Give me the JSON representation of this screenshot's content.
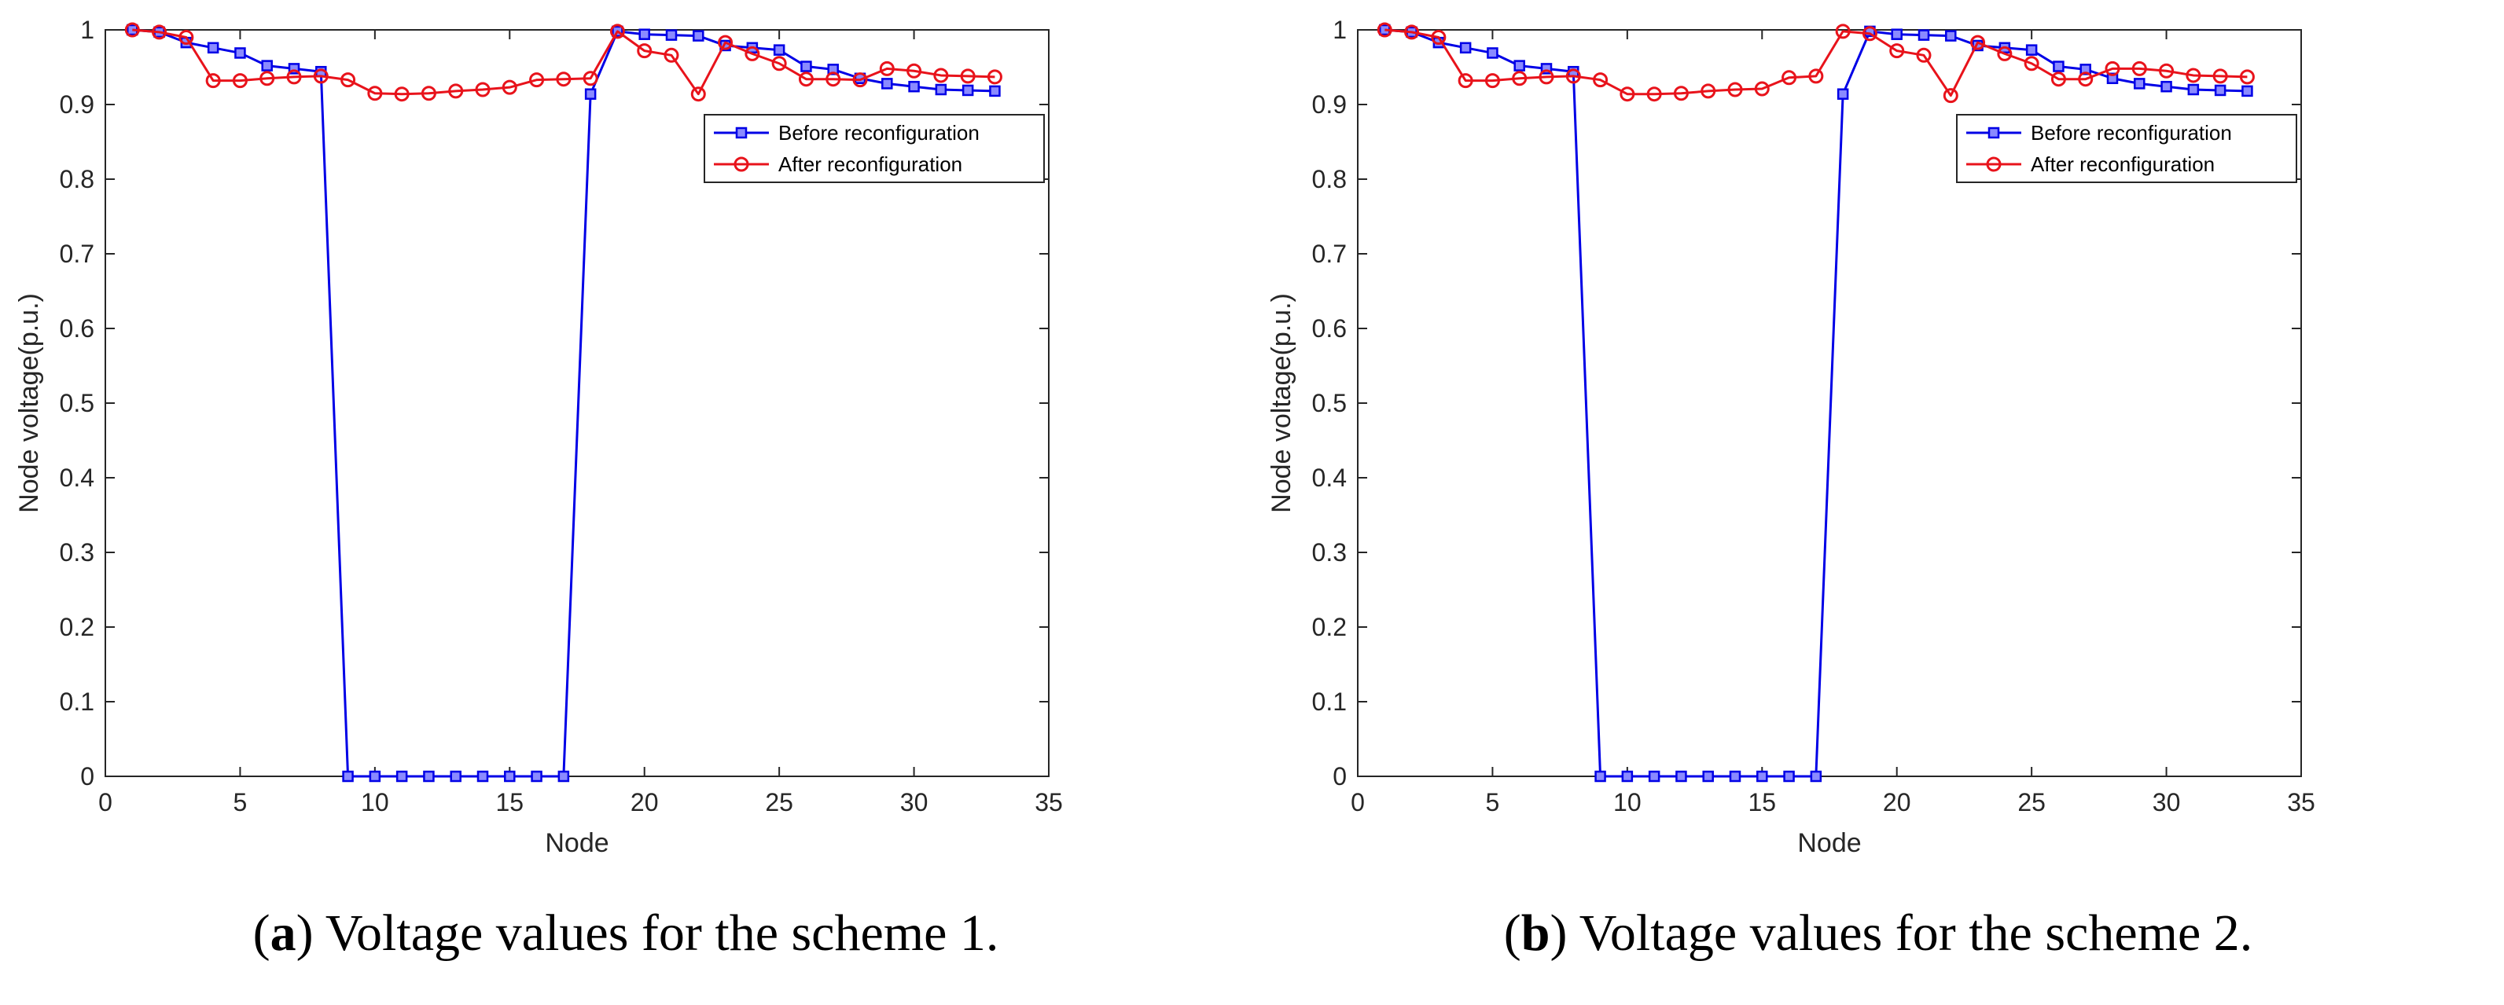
{
  "colors": {
    "before": "#0000e6",
    "before_marker_fill": "#8a8aff",
    "after": "#e8131b",
    "axis": "#262626"
  },
  "chart_data": [
    {
      "type": "line",
      "title": "",
      "xlabel": "Node",
      "ylabel": "Node voltage(p.u.)",
      "xlim": [
        0,
        35
      ],
      "ylim": [
        0,
        1
      ],
      "x_ticks": [
        "0",
        "5",
        "10",
        "15",
        "20",
        "25",
        "30",
        "35"
      ],
      "y_ticks": [
        "0",
        "0.1",
        "0.2",
        "0.3",
        "0.4",
        "0.5",
        "0.6",
        "0.7",
        "0.8",
        "0.9",
        "1"
      ],
      "legend_position": "top-right",
      "x": [
        1,
        2,
        3,
        4,
        5,
        6,
        7,
        8,
        9,
        10,
        11,
        12,
        13,
        14,
        15,
        16,
        17,
        18,
        19,
        20,
        21,
        22,
        23,
        24,
        25,
        26,
        27,
        28,
        29,
        30,
        31,
        32,
        33
      ],
      "series": [
        {
          "name": "Before reconfiguration",
          "marker": "square",
          "values": [
            1.0,
            0.997,
            0.983,
            0.976,
            0.969,
            0.952,
            0.948,
            0.944,
            0,
            0,
            0,
            0,
            0,
            0,
            0,
            0,
            0,
            0.914,
            0.998,
            0.994,
            0.993,
            0.992,
            0.979,
            0.976,
            0.973,
            0.951,
            0.947,
            0.935,
            0.928,
            0.924,
            0.92,
            0.919,
            0.918
          ]
        },
        {
          "name": "After reconfiguration",
          "marker": "circle",
          "values": [
            1.0,
            0.997,
            0.99,
            0.932,
            0.932,
            0.935,
            0.937,
            0.938,
            0.933,
            0.915,
            0.914,
            0.915,
            0.918,
            0.92,
            0.923,
            0.933,
            0.934,
            0.935,
            0.998,
            0.972,
            0.966,
            0.914,
            0.983,
            0.968,
            0.955,
            0.934,
            0.934,
            0.933,
            0.948,
            0.945,
            0.939,
            0.938,
            0.937
          ]
        }
      ],
      "caption_label": "a",
      "caption_text": "Voltage values for the scheme 1."
    },
    {
      "type": "line",
      "title": "",
      "xlabel": "Node",
      "ylabel": "Node voltage(p.u.)",
      "xlim": [
        0,
        35
      ],
      "ylim": [
        0,
        1
      ],
      "x_ticks": [
        "0",
        "5",
        "10",
        "15",
        "20",
        "25",
        "30",
        "35"
      ],
      "y_ticks": [
        "0",
        "0.1",
        "0.2",
        "0.3",
        "0.4",
        "0.5",
        "0.6",
        "0.7",
        "0.8",
        "0.9",
        "1"
      ],
      "legend_position": "top-right",
      "x": [
        1,
        2,
        3,
        4,
        5,
        6,
        7,
        8,
        9,
        10,
        11,
        12,
        13,
        14,
        15,
        16,
        17,
        18,
        19,
        20,
        21,
        22,
        23,
        24,
        25,
        26,
        27,
        28,
        29,
        30,
        31,
        32,
        33
      ],
      "series": [
        {
          "name": "Before reconfiguration",
          "marker": "square",
          "values": [
            1.0,
            0.997,
            0.983,
            0.976,
            0.969,
            0.952,
            0.948,
            0.944,
            0,
            0,
            0,
            0,
            0,
            0,
            0,
            0,
            0,
            0.914,
            0.998,
            0.994,
            0.993,
            0.992,
            0.979,
            0.976,
            0.973,
            0.951,
            0.947,
            0.935,
            0.928,
            0.924,
            0.92,
            0.919,
            0.918
          ]
        },
        {
          "name": "After reconfiguration",
          "marker": "circle",
          "values": [
            1.0,
            0.997,
            0.99,
            0.932,
            0.932,
            0.935,
            0.937,
            0.938,
            0.933,
            0.914,
            0.914,
            0.915,
            0.918,
            0.92,
            0.921,
            0.936,
            0.938,
            0.998,
            0.995,
            0.972,
            0.966,
            0.912,
            0.983,
            0.968,
            0.955,
            0.934,
            0.934,
            0.948,
            0.948,
            0.945,
            0.939,
            0.938,
            0.937
          ]
        }
      ],
      "caption_label": "b",
      "caption_text": "Voltage values for the scheme 2."
    }
  ]
}
